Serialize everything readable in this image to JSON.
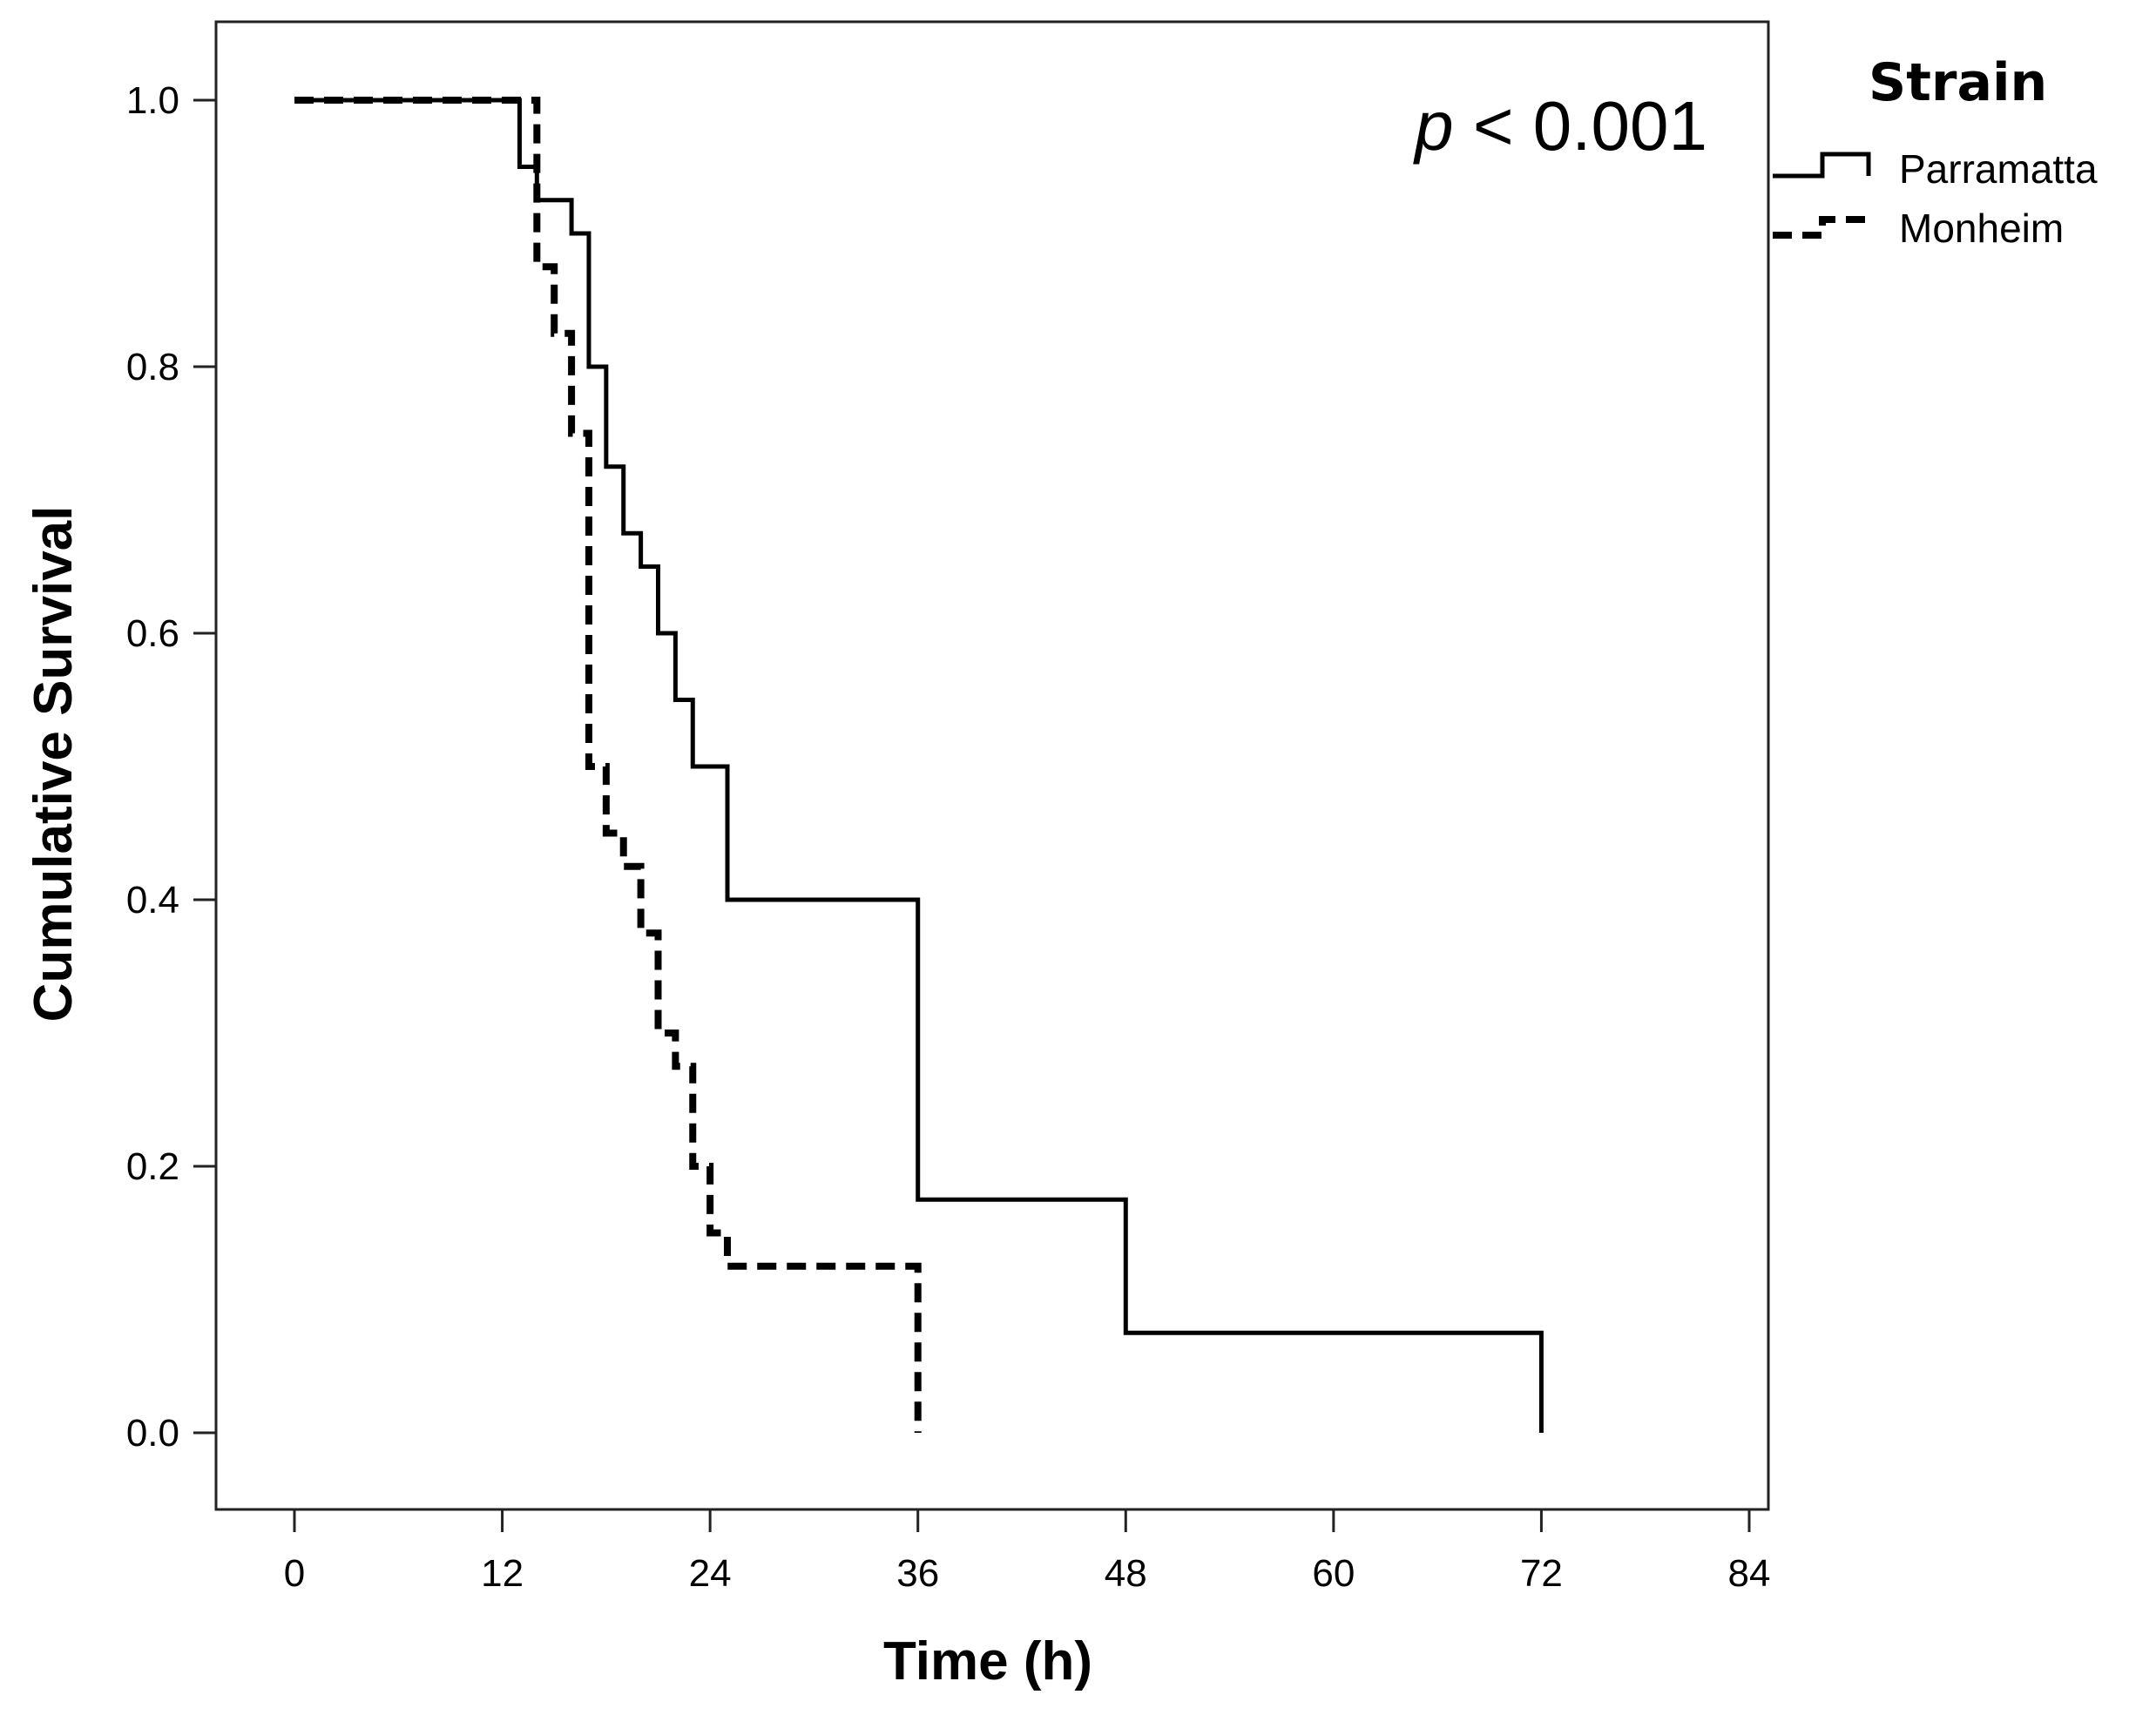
{
  "chart_data": {
    "type": "line",
    "subtype": "kaplan-meier step",
    "xlabel": "Time (h)",
    "ylabel": "Cumulative Survival",
    "xlim": [
      0,
      84
    ],
    "ylim": [
      0,
      1
    ],
    "x_ticks": [
      "0",
      "12",
      "24",
      "36",
      "48",
      "60",
      "72",
      "84"
    ],
    "y_ticks": [
      "0.0",
      "0.2",
      "0.4",
      "0.6",
      "0.8",
      "1.0"
    ],
    "annotation": {
      "italic": "p",
      "rest": " < 0.001"
    },
    "legend": {
      "title": "Strain",
      "position": "right",
      "entries": [
        {
          "label": "Parramatta",
          "style": "solid"
        },
        {
          "label": "Monheim",
          "style": "dashed"
        }
      ]
    },
    "series": [
      {
        "name": "Parramatta",
        "style": "solid",
        "color": "#000000",
        "steps": [
          [
            0,
            1.0
          ],
          [
            13,
            0.95
          ],
          [
            14,
            0.925
          ],
          [
            16,
            0.9
          ],
          [
            17,
            0.8
          ],
          [
            18,
            0.725
          ],
          [
            19,
            0.675
          ],
          [
            20,
            0.65
          ],
          [
            21,
            0.6
          ],
          [
            22,
            0.55
          ],
          [
            23,
            0.5
          ],
          [
            25,
            0.4
          ],
          [
            36,
            0.175
          ],
          [
            48,
            0.075
          ],
          [
            72,
            0.0
          ]
        ]
      },
      {
        "name": "Monheim",
        "style": "dashed",
        "color": "#000000",
        "steps": [
          [
            0,
            1.0
          ],
          [
            14,
            0.875
          ],
          [
            15,
            0.825
          ],
          [
            16,
            0.75
          ],
          [
            17,
            0.5
          ],
          [
            18,
            0.45
          ],
          [
            19,
            0.425
          ],
          [
            20,
            0.375
          ],
          [
            21,
            0.3
          ],
          [
            22,
            0.275
          ],
          [
            23,
            0.2
          ],
          [
            24,
            0.15
          ],
          [
            25,
            0.125
          ],
          [
            36,
            0.0
          ]
        ]
      }
    ]
  }
}
